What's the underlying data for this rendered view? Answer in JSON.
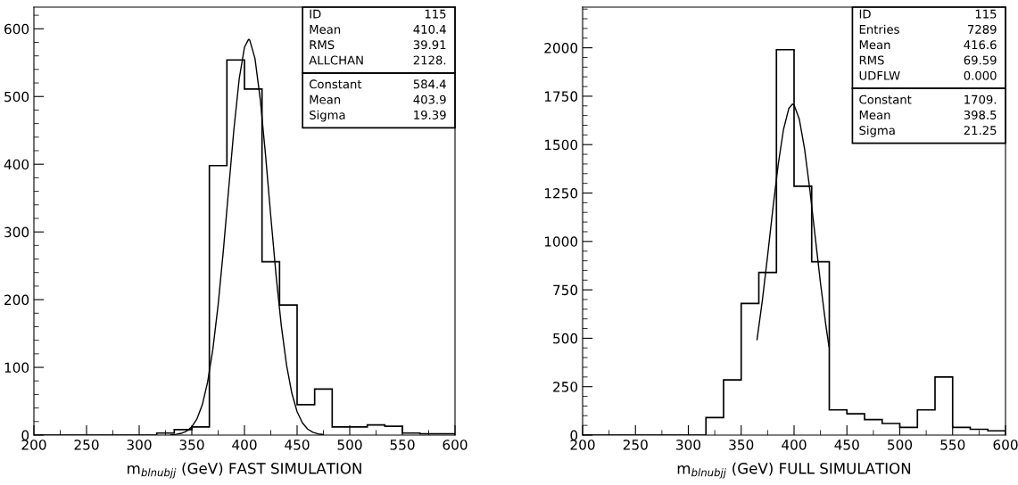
{
  "chart_data": [
    {
      "type": "histogram",
      "xlabel": "m$_{blnubjj}$ (GeV) FAST SIMULATION",
      "color": "#000000",
      "bins": [
        200,
        216.67,
        233.33,
        250,
        266.67,
        283.33,
        300,
        316.67,
        333.33,
        350,
        366.67,
        383.33,
        400,
        416.67,
        433.33,
        450,
        466.67,
        483.33,
        500,
        516.67,
        533.33,
        550,
        566.67,
        583.33,
        600
      ],
      "values": [
        0,
        0,
        0,
        0,
        0,
        0,
        0,
        3,
        8,
        12,
        398,
        554,
        511,
        256,
        192,
        45,
        68,
        12,
        12,
        15,
        13,
        3,
        2,
        2
      ],
      "series": [
        {
          "type": "line",
          "color": "#000000",
          "x": [
            330,
            335,
            340,
            345,
            350,
            355,
            360,
            365,
            370,
            375,
            380,
            385,
            390,
            395,
            400,
            403.9,
            405,
            410,
            415,
            420,
            425,
            430,
            435,
            440,
            445,
            450,
            455,
            460,
            465,
            470,
            475
          ],
          "values": [
            0.4,
            1.1,
            2.6,
            5.8,
            12.3,
            24.3,
            45.0,
            78.1,
            126.8,
            192.5,
            273.4,
            363.4,
            452.0,
            526.0,
            572.7,
            584.4,
            583.5,
            556.2,
            496.0,
            414.0,
            323.3,
            236.2,
            161.5,
            103.3,
            61.8,
            34.6,
            18.1,
            8.9,
            4.1,
            1.7,
            0.7
          ]
        }
      ],
      "xlim": [
        200,
        600
      ],
      "xticks": [
        200,
        250,
        300,
        350,
        400,
        450,
        500,
        550,
        600
      ],
      "ylim": [
        0,
        632
      ],
      "yticks": [
        0,
        100,
        200,
        300,
        400,
        500,
        600
      ],
      "grid": false,
      "legend": false,
      "annotations": [
        "ID\t115",
        "Mean\t410.4",
        "RMS\t39.91",
        "ALLCHAN\t2128.",
        "Constant\t584.4",
        "Mean\t403.9",
        "Sigma\t19.39"
      ]
    },
    {
      "type": "histogram",
      "xlabel": "m$_{blnubjj}$ (GeV) FULL SIMULATION",
      "color": "#000000",
      "bins": [
        200,
        216.67,
        233.33,
        250,
        266.67,
        283.33,
        300,
        316.67,
        333.33,
        350,
        366.67,
        383.33,
        400,
        416.67,
        433.33,
        450,
        466.67,
        483.33,
        500,
        516.67,
        533.33,
        550,
        566.67,
        583.33,
        600
      ],
      "values": [
        0,
        0,
        0,
        0,
        0,
        0,
        0,
        90,
        285,
        680,
        840,
        1990,
        1285,
        895,
        130,
        110,
        80,
        60,
        40,
        130,
        300,
        40,
        30,
        22
      ],
      "series": [
        {
          "type": "line",
          "color": "#000000",
          "x": [
            365,
            370,
            375,
            380,
            385,
            390,
            395,
            398.5,
            400,
            405,
            410,
            415,
            420,
            425,
            430,
            433
          ],
          "values": [
            493,
            695,
            927,
            1170,
            1397,
            1578,
            1686,
            1709,
            1705,
            1631,
            1476,
            1264,
            1024,
            785,
            570,
            457
          ]
        }
      ],
      "xlim": [
        200,
        600
      ],
      "xticks": [
        200,
        250,
        300,
        350,
        400,
        450,
        500,
        550,
        600
      ],
      "ylim": [
        0,
        2210
      ],
      "yticks": [
        0,
        250,
        500,
        750,
        1000,
        1250,
        1500,
        1750,
        2000
      ],
      "grid": false,
      "legend": false,
      "annotations": [
        "ID\t115",
        "Entries\t7289",
        "Mean\t416.6",
        "RMS\t69.59",
        "UDFLW\t0.000",
        "Constant\t1709.",
        "Mean\t398.5",
        "Sigma\t21.25"
      ]
    }
  ]
}
